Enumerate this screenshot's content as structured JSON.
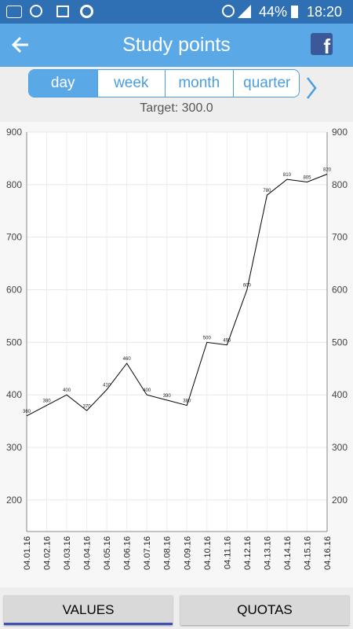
{
  "status": {
    "battery": "44%",
    "time": "18:20"
  },
  "header": {
    "title": "Study points"
  },
  "tabs": [
    "day",
    "week",
    "month",
    "quarter"
  ],
  "target": "Target: 300.0",
  "chart_data": {
    "type": "line",
    "categories": [
      "04.01.16",
      "04.02.16",
      "04.03.16",
      "04.04.16",
      "04.05.16",
      "04.06.16",
      "04.07.16",
      "04.08.16",
      "04.09.16",
      "04.10.16",
      "04.11.16",
      "04.12.16",
      "04.13.16",
      "04.14.16",
      "04.15.16",
      "04.16.16"
    ],
    "values": [
      360,
      380,
      400,
      370,
      410,
      460,
      400,
      390,
      380,
      500,
      495,
      600,
      780,
      810,
      805,
      820
    ],
    "color": "#000000",
    "ylim": [
      140,
      900
    ],
    "yticks": [
      200,
      300,
      400,
      500,
      600,
      700,
      800,
      900
    ],
    "grid": true
  },
  "buttons": [
    "VALUES",
    "QUOTAS"
  ]
}
